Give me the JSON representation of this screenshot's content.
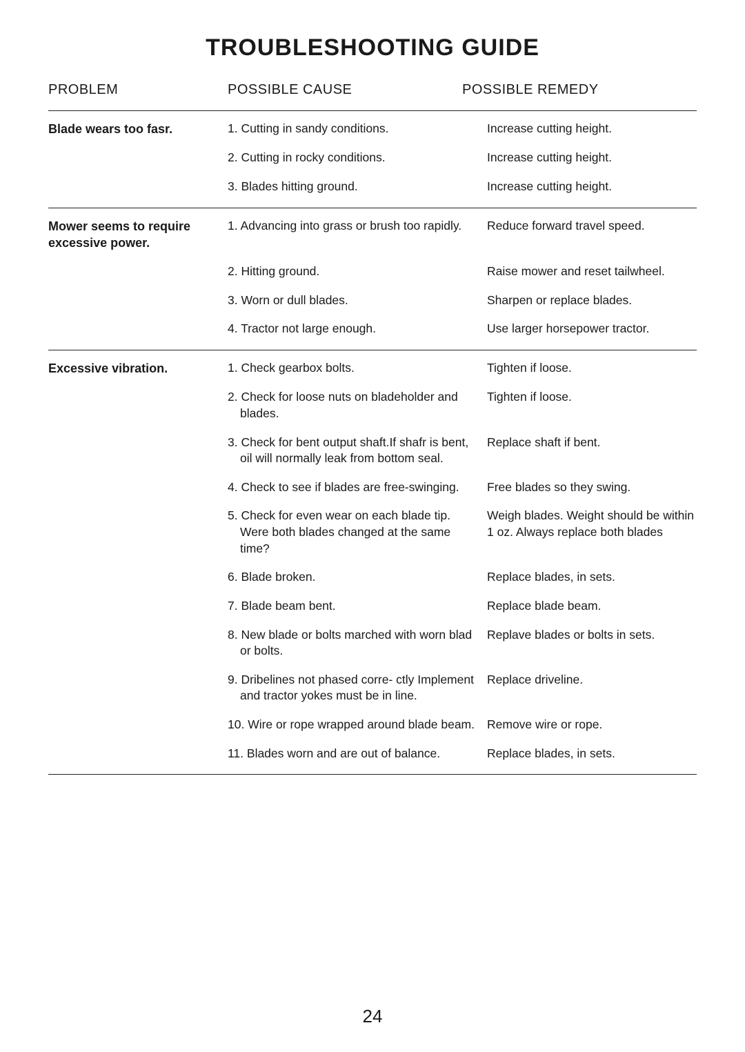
{
  "title": "TROUBLESHOOTING GUIDE",
  "headers": {
    "problem": "PROBLEM",
    "cause": "POSSIBLE CAUSE",
    "remedy": "POSSIBLE REMEDY"
  },
  "sections": [
    {
      "problem": "Blade wears too fasr.",
      "rows": [
        {
          "cause": "1. Cutting in sandy conditions.",
          "remedy": "Increase cutting height."
        },
        {
          "cause": "2. Cutting in rocky conditions.",
          "remedy": "Increase cutting height."
        },
        {
          "cause": "3. Blades hitting ground.",
          "remedy": "Increase cutting height."
        }
      ]
    },
    {
      "problem": "Mower seems to require excessive power.",
      "rows": [
        {
          "cause": "1. Advancing into grass or brush too rapidly.",
          "remedy": "Reduce forward travel speed."
        },
        {
          "cause": "2. Hitting ground.",
          "remedy": "Raise mower and reset tailwheel."
        },
        {
          "cause": "3. Worn or dull blades.",
          "remedy": "Sharpen or replace blades."
        },
        {
          "cause": "4. Tractor not large enough.",
          "remedy": "Use larger horsepower tractor."
        }
      ]
    },
    {
      "problem": "Excessive vibration.",
      "rows": [
        {
          "cause": "1. Check gearbox bolts.",
          "remedy": "Tighten if loose."
        },
        {
          "cause": "2. Check for loose nuts on bladeholder and blades.",
          "remedy": "Tighten if loose."
        },
        {
          "cause": "3. Check for bent output shaft.If shafr is bent, oil will normally leak from bottom seal.",
          "remedy": "Replace shaft if bent."
        },
        {
          "cause": "4. Check to see if blades are free-swinging.",
          "remedy": "Free blades so they swing."
        },
        {
          "cause": "5. Check for even wear on each blade tip. Were both blades changed at the same time?",
          "remedy": "Weigh blades. Weight should be within 1 oz. Always replace both blades"
        },
        {
          "cause": "6. Blade broken.",
          "remedy": "Replace blades, in sets."
        },
        {
          "cause": "7. Blade beam bent.",
          "remedy": "Replace blade beam."
        },
        {
          "cause": "8. New blade or bolts marched with worn blad or bolts.",
          "remedy": "Replave blades or bolts in sets."
        },
        {
          "cause": "9. Dribelines not phased corre- ctly Implement and tractor yokes must be in line.",
          "remedy": "Replace driveline."
        },
        {
          "cause": "10. Wire or rope wrapped around blade beam.",
          "remedy": "Remove wire or rope."
        },
        {
          "cause": "11. Blades worn and are out of balance.",
          "remedy": "Replace blades, in sets."
        }
      ]
    }
  ],
  "page_number": "24",
  "colors": {
    "text": "#1a1a1a",
    "rule": "#222222",
    "background": "#ffffff"
  },
  "fonts": {
    "title_size": 34,
    "header_size": 20,
    "body_size": 17.5,
    "page_number_size": 26
  }
}
